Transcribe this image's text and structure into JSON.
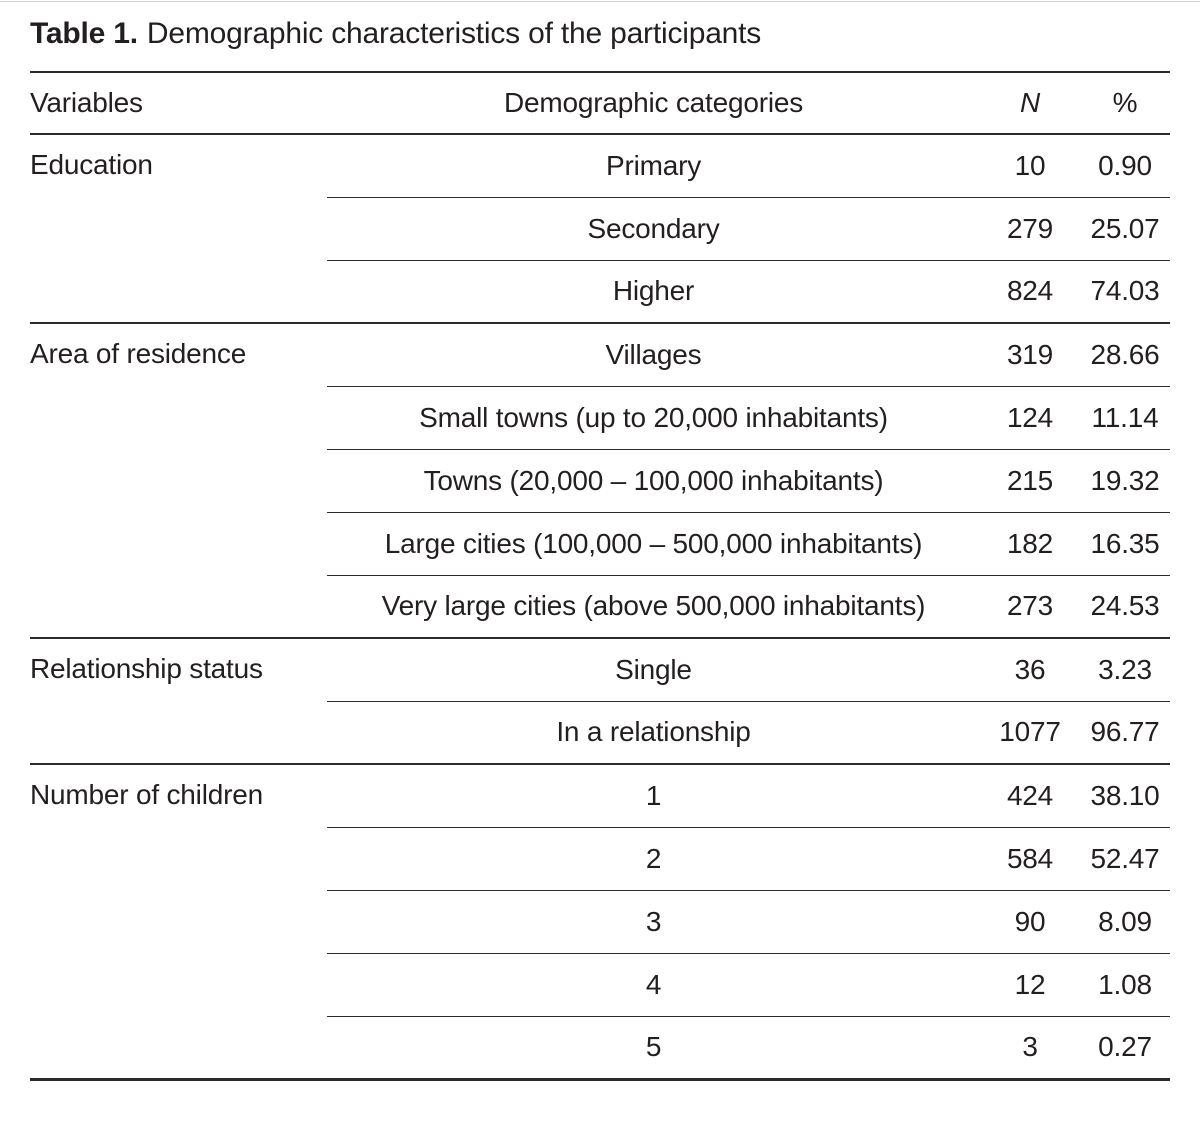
{
  "title": {
    "label": "Table 1.",
    "text": "Demographic characteristics of the participants"
  },
  "columns": {
    "variables": "Variables",
    "categories": "Demographic categories",
    "n": "N",
    "pct": "%"
  },
  "groups": [
    {
      "variable": "Education",
      "rows": [
        {
          "category": "Primary",
          "n": "10",
          "pct": "0.90"
        },
        {
          "category": "Secondary",
          "n": "279",
          "pct": "25.07"
        },
        {
          "category": "Higher",
          "n": "824",
          "pct": "74.03"
        }
      ]
    },
    {
      "variable": "Area of residence",
      "rows": [
        {
          "category": "Villages",
          "n": "319",
          "pct": "28.66"
        },
        {
          "category": "Small towns (up to 20,000 inhabitants)",
          "n": "124",
          "pct": "11.14"
        },
        {
          "category": "Towns (20,000 – 100,000 inhabitants)",
          "n": "215",
          "pct": "19.32"
        },
        {
          "category": "Large cities (100,000 – 500,000 inhabitants)",
          "n": "182",
          "pct": "16.35"
        },
        {
          "category": "Very large cities (above 500,000 inhabitants)",
          "n": "273",
          "pct": "24.53"
        }
      ]
    },
    {
      "variable": "Relationship status",
      "rows": [
        {
          "category": "Single",
          "n": "36",
          "pct": "3.23"
        },
        {
          "category": "In a relationship",
          "n": "1077",
          "pct": "96.77"
        }
      ]
    },
    {
      "variable": "Number of children",
      "rows": [
        {
          "category": "1",
          "n": "424",
          "pct": "38.10"
        },
        {
          "category": "2",
          "n": "584",
          "pct": "52.47"
        },
        {
          "category": "3",
          "n": "90",
          "pct": "8.09"
        },
        {
          "category": "4",
          "n": "12",
          "pct": "1.08"
        },
        {
          "category": "5",
          "n": "3",
          "pct": "0.27"
        }
      ]
    }
  ],
  "colors": {
    "text": "#231f20",
    "rule": "#2b2b2b",
    "background": "#ffffff"
  }
}
